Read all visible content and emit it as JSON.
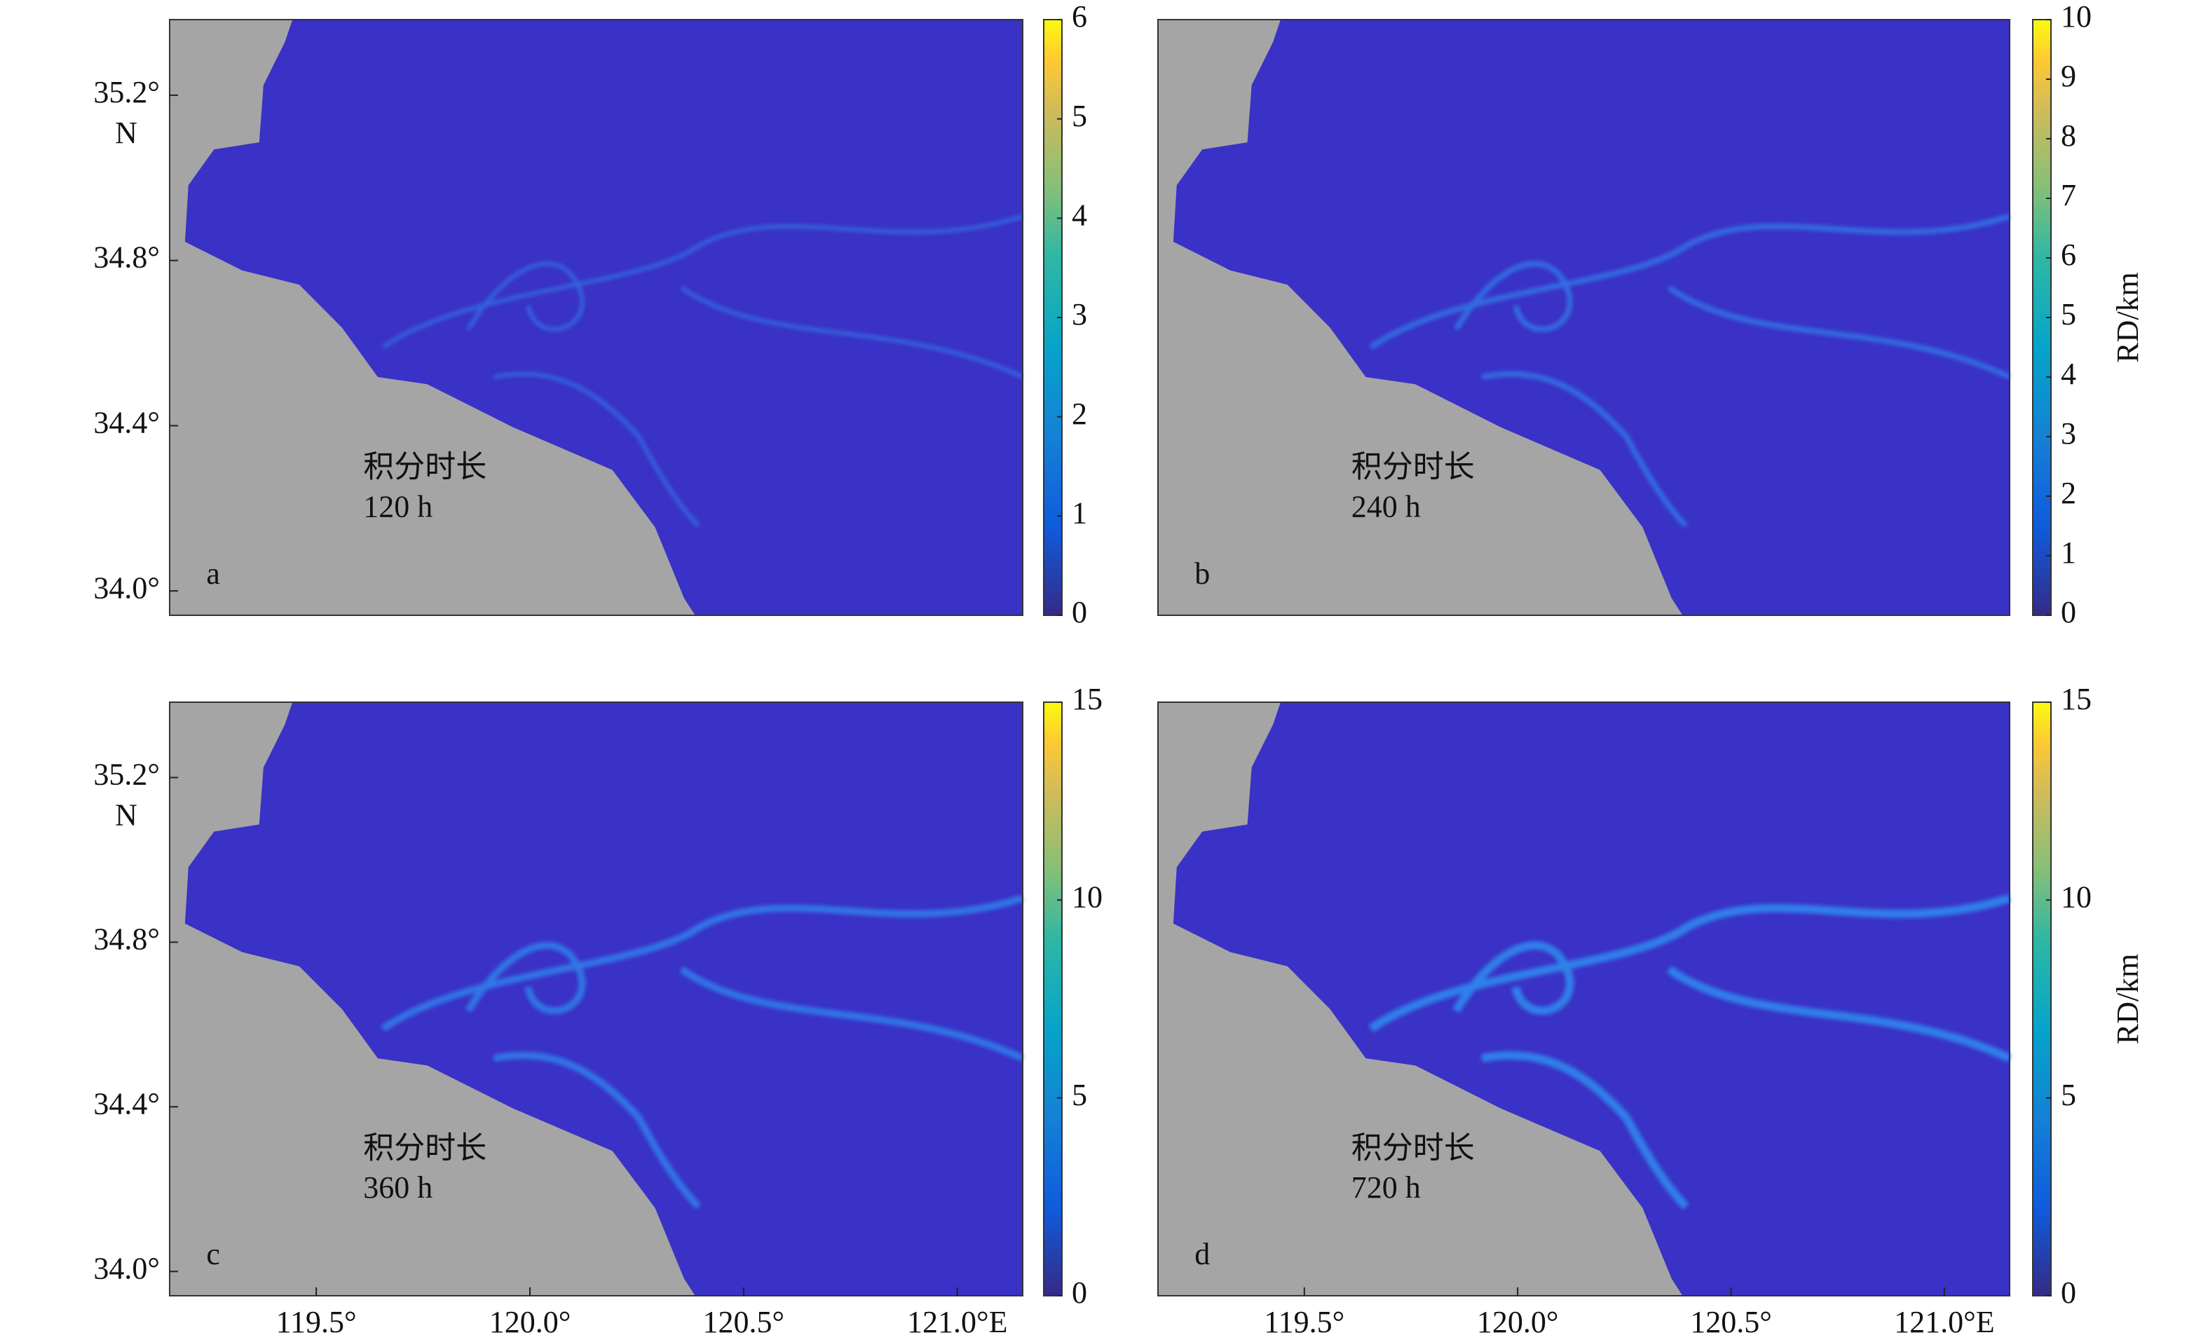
{
  "chart_data": [
    {
      "type": "heatmap",
      "panel_label": "a",
      "annotation": [
        "积分时长",
        "120 h"
      ],
      "xlim": [
        119.157,
        121.153
      ],
      "ylim": [
        33.941,
        35.383
      ],
      "yticks": [
        {
          "value": 34.0,
          "label": "34.0°"
        },
        {
          "value": 34.4,
          "label": "34.4°"
        },
        {
          "value": 34.8,
          "label": "34.8°"
        },
        {
          "value": 35.2,
          "label": "35.2°"
        }
      ],
      "y_unit": "N",
      "colorbar": {
        "clim": [
          0,
          6
        ],
        "ticks": [
          0,
          1,
          2,
          3,
          4,
          5,
          6
        ]
      }
    },
    {
      "type": "heatmap",
      "panel_label": "b",
      "annotation": [
        "积分时长",
        "240 h"
      ],
      "xlim": [
        119.157,
        121.153
      ],
      "ylim": [
        33.941,
        35.383
      ],
      "colorbar": {
        "clim": [
          0,
          10
        ],
        "ticks": [
          0,
          1,
          2,
          3,
          4,
          5,
          6,
          7,
          8,
          9,
          10
        ],
        "label": "RD/km"
      }
    },
    {
      "type": "heatmap",
      "panel_label": "c",
      "annotation": [
        "积分时长",
        "360 h"
      ],
      "xlim": [
        119.157,
        121.153
      ],
      "ylim": [
        33.941,
        35.383
      ],
      "xticks": [
        {
          "value": 119.5,
          "label": "119.5°"
        },
        {
          "value": 120.0,
          "label": "120.0°"
        },
        {
          "value": 120.5,
          "label": "120.5°"
        },
        {
          "value": 121.0,
          "label": "121.0°E"
        }
      ],
      "yticks": [
        {
          "value": 34.0,
          "label": "34.0°"
        },
        {
          "value": 34.4,
          "label": "34.4°"
        },
        {
          "value": 34.8,
          "label": "34.8°"
        },
        {
          "value": 35.2,
          "label": "35.2°"
        }
      ],
      "y_unit": "N",
      "colorbar": {
        "clim": [
          0,
          15
        ],
        "ticks": [
          0,
          5,
          10,
          15
        ]
      }
    },
    {
      "type": "heatmap",
      "panel_label": "d",
      "annotation": [
        "积分时长",
        "720 h"
      ],
      "xlim": [
        119.157,
        121.153
      ],
      "ylim": [
        33.941,
        35.383
      ],
      "xticks": [
        {
          "value": 119.5,
          "label": "119.5°"
        },
        {
          "value": 120.0,
          "label": "120.0°"
        },
        {
          "value": 120.5,
          "label": "120.5°"
        },
        {
          "value": 121.0,
          "label": "121.0°E"
        }
      ],
      "colorbar": {
        "clim": [
          0,
          15
        ],
        "ticks": [
          0,
          5,
          10,
          15
        ],
        "label": "RD/km"
      }
    }
  ]
}
